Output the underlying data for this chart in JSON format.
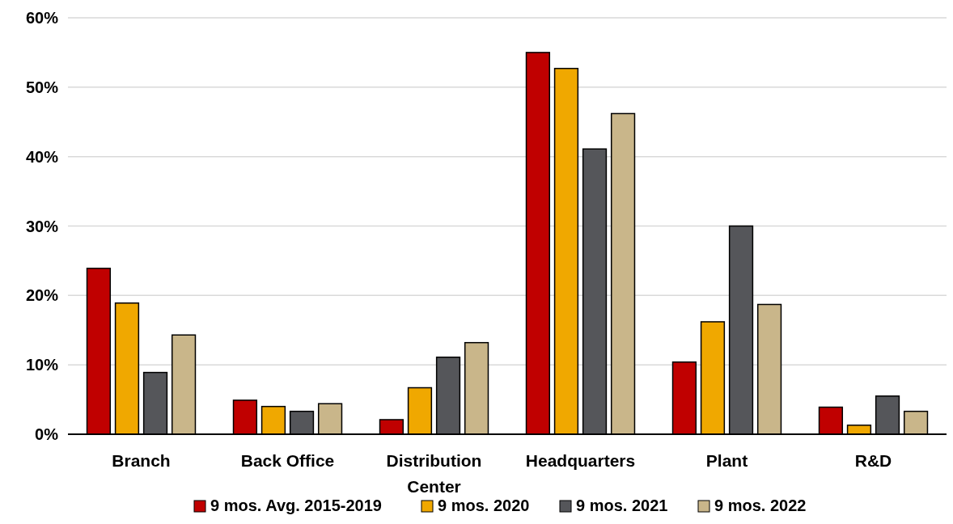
{
  "chart_data": {
    "type": "bar",
    "categories": [
      "Branch",
      "Back Office",
      "Distribution Center",
      "Headquarters",
      "Plant",
      "R&D"
    ],
    "series": [
      {
        "name": "9 mos. Avg. 2015-2019",
        "color": "#c00000",
        "values": [
          23.9,
          4.9,
          2.1,
          55.0,
          10.4,
          3.9
        ]
      },
      {
        "name": "9 mos. 2020",
        "color": "#f0a800",
        "values": [
          18.9,
          4.0,
          6.7,
          52.7,
          16.2,
          1.3
        ]
      },
      {
        "name": "9 mos. 2021",
        "color": "#55565a",
        "values": [
          8.9,
          3.3,
          11.1,
          41.1,
          30.0,
          5.5
        ]
      },
      {
        "name": "9 mos. 2022",
        "color": "#c9b68a",
        "values": [
          14.3,
          4.4,
          13.2,
          46.2,
          18.7,
          3.3
        ]
      }
    ],
    "ylim": [
      0,
      60
    ],
    "yticks": [
      {
        "value": 0,
        "label": "0%"
      },
      {
        "value": 10,
        "label": "10%"
      },
      {
        "value": 20,
        "label": "20%"
      },
      {
        "value": 30,
        "label": "30%"
      },
      {
        "value": 40,
        "label": "40%"
      },
      {
        "value": 50,
        "label": "50%"
      },
      {
        "value": 60,
        "label": "60%"
      }
    ],
    "grid": "y",
    "legend": "bottom"
  }
}
